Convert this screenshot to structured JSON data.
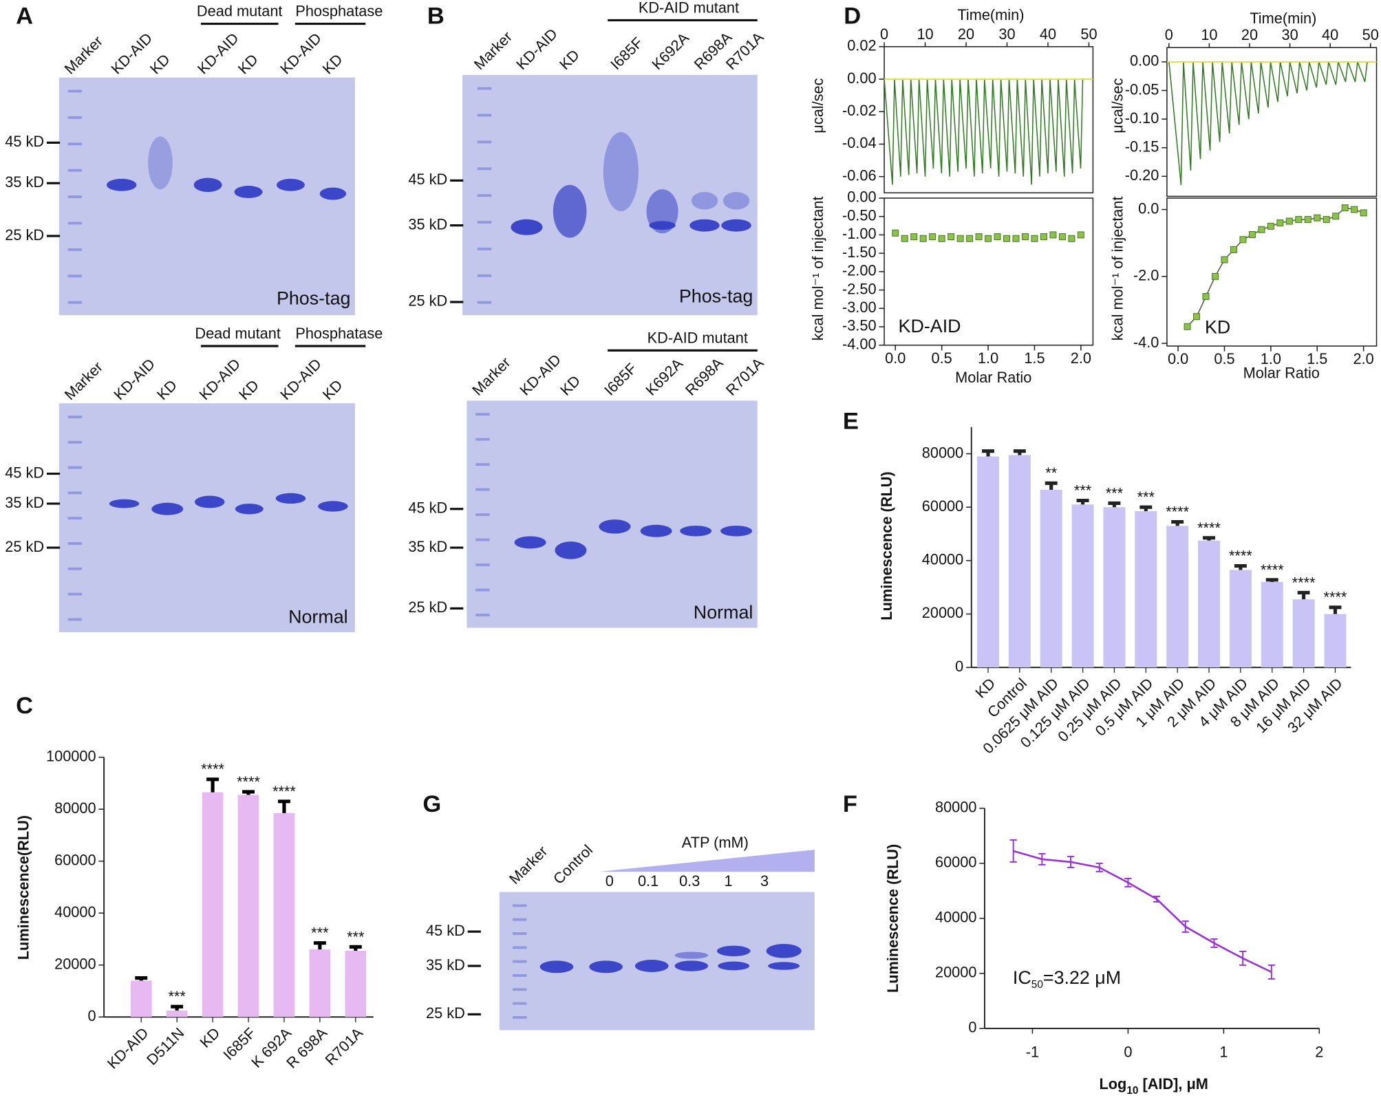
{
  "panel_labels": [
    "A",
    "B",
    "C",
    "D",
    "E",
    "F",
    "G"
  ],
  "gels": [
    {
      "lanes": [
        "Marker",
        "KD-AID",
        "KD",
        "KD-AID",
        "KD",
        "KD-AID",
        "KD"
      ],
      "groups": [
        "Dead mutant",
        "Phosphatase"
      ],
      "markers": [
        "45 kD",
        "35 kD",
        "25 kD"
      ],
      "label": "Phos-tag"
    },
    {
      "lanes": [
        "Marker",
        "KD-AID",
        "KD",
        "KD-AID",
        "KD",
        "KD-AID",
        "KD"
      ],
      "groups": [
        "Dead mutant",
        "Phosphatase"
      ],
      "markers": [
        "45 kD",
        "35 kD",
        "25 kD"
      ],
      "label": "Normal"
    },
    {
      "lanes": [
        "Marker",
        "KD-AID",
        "KD",
        "I685F",
        "K692A",
        "R698A",
        "R701A"
      ],
      "groups": [
        "KD-AID mutant"
      ],
      "markers": [
        "45 kD",
        "35 kD",
        "25 kD"
      ],
      "label": "Phos-tag"
    },
    {
      "lanes": [
        "Marker",
        "KD-AID",
        "KD",
        "I685F",
        "K692A",
        "R698A",
        "R701A"
      ],
      "groups": [
        "KD-AID mutant"
      ],
      "markers": [
        "45 kD",
        "35 kD",
        "25 kD"
      ],
      "label": "Normal"
    },
    {
      "lanes": [
        "Marker",
        "Control",
        "0",
        "0.1",
        "0.3",
        "1",
        "3"
      ],
      "gradient_label": "ATP (mM)",
      "markers": [
        "45 kD",
        "35 kD",
        "25 kD"
      ]
    }
  ],
  "chart_data": [
    {
      "type": "bar",
      "y_label": "Luminescence(RLU)",
      "categories": [
        "KD-AID",
        "D511N",
        "KD",
        "I685F",
        "K 692A",
        "R 698A",
        "R701A"
      ],
      "values": [
        14000,
        2500,
        86500,
        85500,
        78500,
        26000,
        25500
      ],
      "errors": [
        1000,
        1500,
        5000,
        1200,
        4500,
        2500,
        1500
      ],
      "annotations": [
        null,
        "***",
        "****",
        "****",
        "****",
        "***",
        "***"
      ],
      "color": "#e6b9f2",
      "error_color": "#000000",
      "ylim": [
        0,
        100000
      ],
      "yticks": [
        0,
        20000,
        40000,
        60000,
        80000,
        100000
      ]
    },
    {
      "type": "bar",
      "y_label": "Luminescence (RLU)",
      "categories": [
        "KD",
        "Control",
        "0.0625 μM AID",
        "0.125 μM AID",
        "0.25 μM AID",
        "0.5 μM AID",
        "1 μM AID",
        "2 μM AID",
        "4 μM AID",
        "8 μM AID",
        "16 μM AID",
        "32 μM AID"
      ],
      "values": [
        79000,
        79500,
        66500,
        61000,
        60000,
        58500,
        53000,
        47500,
        36500,
        32000,
        25500,
        20000
      ],
      "errors": [
        2000,
        1500,
        2500,
        1500,
        1500,
        1500,
        1500,
        1000,
        1500,
        800,
        2500,
        2500
      ],
      "annotations": [
        null,
        null,
        "**",
        "***",
        "***",
        "***",
        "****",
        "****",
        "****",
        "****",
        "****",
        "****"
      ],
      "color": "#c9c3f6",
      "error_color": "#222222",
      "ylim": [
        0,
        90000
      ],
      "yticks": [
        0,
        20000,
        40000,
        60000,
        80000
      ]
    },
    {
      "type": "line",
      "y_label": "Luminescence (RLU)",
      "x_label": {
        "text": "Log",
        "sub": "10",
        "rest": " [AID],   μM"
      },
      "annotation": {
        "text": "IC",
        "sub": "50",
        "rest": "=3.22 μM"
      },
      "x": [
        -1.2,
        -0.9,
        -0.6,
        -0.3,
        0,
        0.3,
        0.6,
        0.9,
        1.2,
        1.5
      ],
      "values": [
        64500,
        61500,
        60500,
        58500,
        53000,
        47000,
        37000,
        31000,
        25500,
        20500
      ],
      "errors": [
        4000,
        2000,
        2000,
        1500,
        1500,
        1000,
        2000,
        1500,
        2500,
        2500
      ],
      "color": "#9a2fd8",
      "xlim": [
        -1.5,
        2
      ],
      "xticks": [
        -1,
        0,
        1,
        2
      ],
      "ylim": [
        0,
        80000
      ],
      "yticks": [
        0,
        20000,
        40000,
        60000,
        80000
      ]
    },
    {
      "type": "line",
      "x_label": "Time(min)",
      "y_label": "μcal/sec",
      "x": [
        0,
        2,
        2.5,
        4,
        4.5,
        6,
        6.5,
        8,
        8.5,
        10,
        10.5,
        12,
        12.5,
        14,
        14.5,
        16,
        16.5,
        18,
        18.5,
        20,
        20.5,
        22,
        22.5,
        24,
        24.5,
        26,
        26.5,
        28,
        28.5,
        30,
        30.5,
        32,
        32.5,
        34,
        34.5,
        36,
        36.5,
        38,
        38.5,
        40,
        40.5,
        42,
        42.5,
        44,
        44.5,
        46,
        46.5,
        48,
        48.5,
        50
      ],
      "values": [
        0,
        -0.065,
        0,
        -0.06,
        0,
        -0.059,
        0,
        -0.058,
        0,
        -0.06,
        0,
        -0.055,
        0,
        -0.058,
        0,
        -0.06,
        0,
        -0.057,
        0,
        -0.055,
        0,
        -0.06,
        0,
        -0.058,
        0,
        -0.055,
        0,
        -0.06,
        0,
        -0.057,
        0,
        -0.058,
        0,
        -0.06,
        0,
        -0.065,
        0,
        -0.06,
        0,
        -0.058,
        0,
        -0.057,
        0,
        -0.06,
        0,
        -0.058,
        0,
        -0.055,
        0,
        0
      ],
      "color": "#2f7d1f",
      "baseline": 0,
      "baseline_color": "#e3e33a",
      "xlim": [
        0,
        51
      ],
      "xticks": [
        0,
        10,
        20,
        30,
        40,
        50
      ],
      "ylim": [
        -0.07,
        0.02
      ],
      "yticks": [
        0.02,
        {
          "value": 0,
          "label": "0.00"
        },
        -0.02,
        -0.04,
        -0.06
      ]
    },
    {
      "type": "scatter",
      "x_label": "Molar Ratio",
      "y_label": "kcal mol⁻¹ of injectant",
      "annotation": "KD-AID",
      "x": [
        0,
        0.1,
        0.2,
        0.3,
        0.4,
        0.5,
        0.6,
        0.7,
        0.8,
        0.9,
        1.0,
        1.1,
        1.2,
        1.3,
        1.4,
        1.5,
        1.6,
        1.7,
        1.8,
        1.9,
        2.0
      ],
      "values": [
        -0.95,
        -1.1,
        -1.05,
        -1.1,
        -1.05,
        -1.1,
        -1.05,
        -1.1,
        -1.1,
        -1.05,
        -1.1,
        -1.05,
        -1.1,
        -1.1,
        -1.05,
        -1.1,
        -1.05,
        -1.0,
        -1.05,
        -1.1,
        -1.0
      ],
      "color": "#8bc34a",
      "xlim": [
        -0.12,
        2.13
      ],
      "xticks": [
        {
          "value": 0,
          "label": "0.0"
        },
        0.5,
        {
          "value": 1,
          "label": "1.0"
        },
        1.5,
        {
          "value": 2,
          "label": "2.0"
        }
      ],
      "ylim": [
        -4.0,
        0
      ],
      "yticks": [
        {
          "value": 0,
          "label": "0.00"
        },
        {
          "value": -0.5,
          "label": "-0.50"
        },
        {
          "value": -1,
          "label": "-1.00"
        },
        {
          "value": -1.5,
          "label": "-1.50"
        },
        {
          "value": -2,
          "label": "-2.00"
        },
        {
          "value": -2.5,
          "label": "-2.50"
        },
        {
          "value": -3,
          "label": "-3.00"
        },
        {
          "value": -3.5,
          "label": "-3.50"
        },
        {
          "value": -4,
          "label": "-4.00"
        }
      ]
    },
    {
      "type": "line",
      "x_label": "Time(min)",
      "y_label": "μcal/sec",
      "x": [
        0,
        3,
        3.6,
        5.4,
        6,
        7.8,
        8.4,
        10.2,
        10.8,
        12.6,
        13.2,
        15,
        15.6,
        17.4,
        18,
        19.8,
        20.4,
        22.2,
        22.8,
        24.6,
        25.2,
        27,
        27.6,
        29.4,
        30,
        31.8,
        32.4,
        34.2,
        34.8,
        36.6,
        37.2,
        39,
        39.6,
        41.4,
        42,
        43.8,
        44.4,
        46.2,
        46.8,
        48.6,
        49.2,
        50
      ],
      "values": [
        0,
        -0.215,
        0,
        -0.19,
        0,
        -0.17,
        0,
        -0.155,
        0,
        -0.14,
        0,
        -0.125,
        0,
        -0.11,
        0,
        -0.1,
        0,
        -0.09,
        0,
        -0.08,
        0,
        -0.07,
        0,
        -0.06,
        0,
        -0.055,
        0,
        -0.05,
        0,
        -0.045,
        0,
        -0.04,
        0,
        -0.04,
        0,
        -0.035,
        0,
        -0.035,
        0,
        -0.035,
        0,
        0
      ],
      "color": "#2f7d1f",
      "baseline": 0,
      "baseline_color": "#e3e33a",
      "xlim": [
        -0.5,
        51.5
      ],
      "xticks": [
        0,
        10,
        20,
        30,
        40,
        50
      ],
      "ylim": [
        -0.235,
        0.025
      ],
      "yticks": [
        {
          "value": 0,
          "label": "0.00"
        },
        -0.05,
        {
          "value": -0.1,
          "label": "-0.10"
        },
        -0.15,
        {
          "value": -0.2,
          "label": "-0.20"
        }
      ]
    },
    {
      "type": "scatter",
      "x_label": "Molar Ratio",
      "y_label": "kcal mol⁻¹ of injectant",
      "annotation": "KD",
      "x": [
        0.1,
        0.2,
        0.3,
        0.4,
        0.5,
        0.6,
        0.7,
        0.8,
        0.9,
        1.0,
        1.1,
        1.2,
        1.3,
        1.4,
        1.5,
        1.6,
        1.7,
        1.8,
        1.9,
        2.0
      ],
      "values": [
        -3.5,
        -3.2,
        -2.6,
        -2.0,
        -1.5,
        -1.2,
        -0.9,
        -0.75,
        -0.6,
        -0.5,
        -0.4,
        -0.35,
        -0.3,
        -0.3,
        -0.25,
        -0.3,
        -0.2,
        0.05,
        0,
        -0.1
      ],
      "color": "#8bc34a",
      "line_color": "#4d5a3c",
      "xlim": [
        -0.12,
        2.14
      ],
      "xticks": [
        {
          "value": 0,
          "label": "0.0"
        },
        0.5,
        {
          "value": 1,
          "label": "1.0"
        },
        1.5,
        {
          "value": 2,
          "label": "2.0"
        }
      ],
      "ylim": [
        -4.08,
        0.34
      ],
      "yticks": [
        {
          "value": 0,
          "label": "0.0"
        },
        {
          "value": -2,
          "label": "-2.0"
        },
        {
          "value": -4,
          "label": "-4.0"
        }
      ]
    }
  ]
}
